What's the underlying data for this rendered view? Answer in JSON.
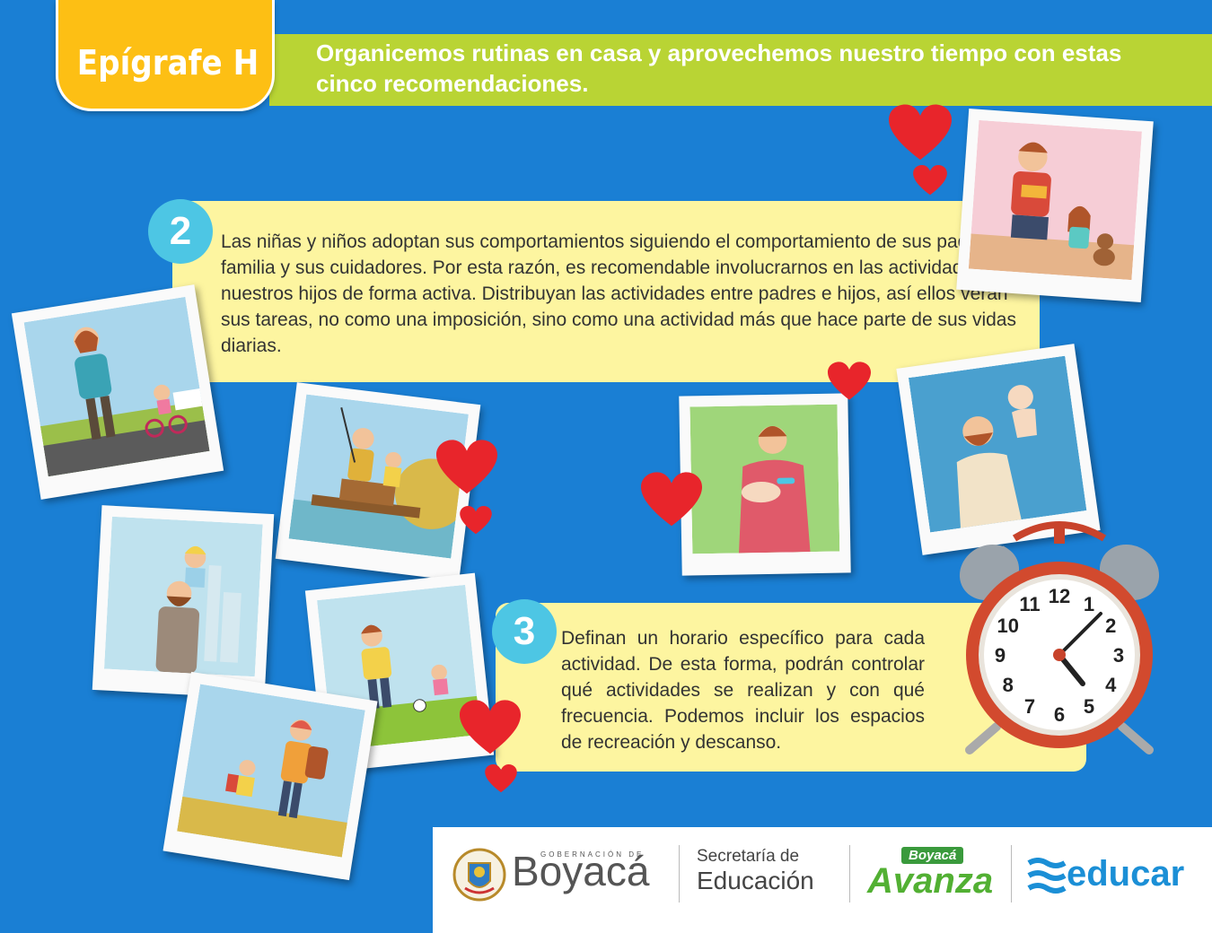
{
  "header": {
    "tag": "Epígrafe H",
    "headline": "Organicemos rutinas en casa y aprovechemos nuestro tiempo con estas cinco recomendaciones."
  },
  "tips": [
    {
      "number": "2",
      "text": "Las niñas y niños adoptan sus comportamientos siguiendo el comportamiento de sus padres, su familia y sus cuidadores. Por esta razón, es recomendable involucrarnos en las actividades de nuestros hijos de forma activa. Distribuyan las actividades entre padres e hijos, así ellos verán sus tareas, no como una imposición, sino como una actividad más que hace parte de sus vidas diarias."
    },
    {
      "number": "3",
      "text": "Definan un horario específico para cada actividad. De esta forma, podrán controlar qué actividades se realizan y con qué frecuencia. Podemos incluir los espacios de recreación y descanso."
    }
  ],
  "clock": {
    "numbers": [
      "12",
      "1",
      "2",
      "3",
      "4",
      "5",
      "6",
      "7",
      "8",
      "9",
      "10",
      "11"
    ]
  },
  "footer": {
    "gobernacion": "GOBERNACIÓN DE",
    "boyaca": "Boyacá",
    "secretaria_line1": "Secretaría de",
    "secretaria_line2": "Educación",
    "avanza_tag": "Boyacá",
    "avanza": "Avanza",
    "educar": "educar"
  },
  "colors": {
    "background": "#1a7fd4",
    "green_bar": "#b9d434",
    "tag": "#fdbf14",
    "panel": "#fdf5a0",
    "number_circle": "#4dc6e4",
    "heart": "#e8252b"
  }
}
